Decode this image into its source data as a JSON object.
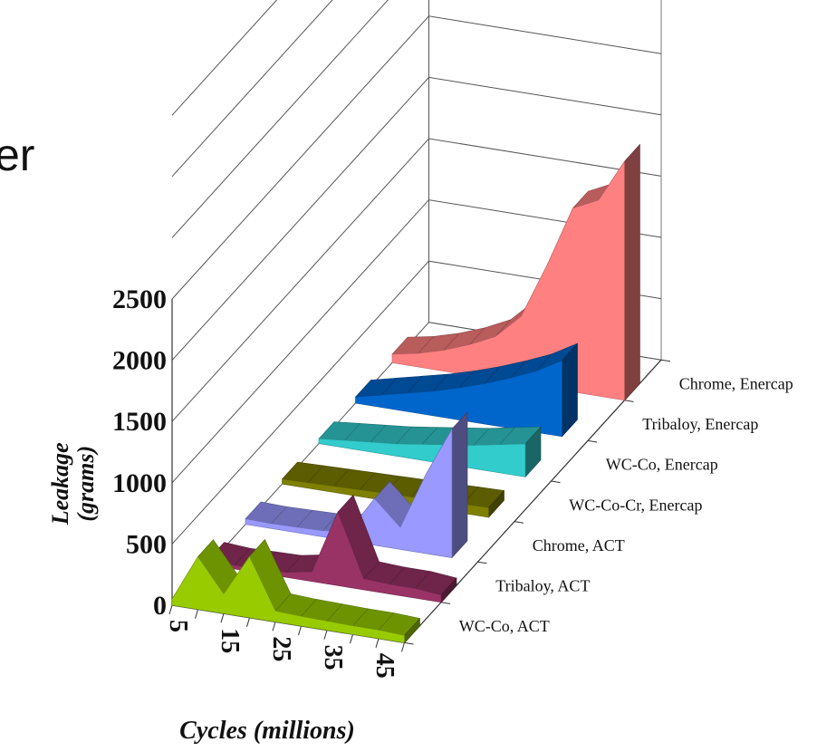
{
  "slide": {
    "title_fragment": "er"
  },
  "chart_data": {
    "type": "area",
    "title": "",
    "xlabel": "Cycles (millions)",
    "ylabel": "Leakage (grams)",
    "ylim": [
      0,
      2500
    ],
    "yticks": [
      "0",
      "500",
      "1000",
      "1500",
      "2000",
      "2500"
    ],
    "xticks": [
      "5",
      "15",
      "25",
      "35",
      "45"
    ],
    "x": [
      5,
      10,
      15,
      20,
      25,
      30,
      35,
      40,
      45,
      50
    ],
    "grid": true,
    "series": [
      {
        "name": "WC-Co, ACT",
        "color": "#99cc00",
        "values": [
          50,
          430,
          160,
          500,
          90,
          80,
          75,
          70,
          70,
          60
        ]
      },
      {
        "name": "Tribaloy, ACT",
        "color": "#993366",
        "values": [
          45,
          30,
          35,
          40,
          80,
          600,
          90,
          80,
          80,
          60
        ]
      },
      {
        "name": "Chrome, ACT",
        "color": "#9999ff",
        "values": [
          45,
          40,
          45,
          50,
          80,
          380,
          180,
          650,
          1050,
          0
        ]
      },
      {
        "name": "WC-Co-Cr, Enercap",
        "color": "#808000",
        "values": [
          40,
          45,
          50,
          55,
          60,
          65,
          70,
          75,
          80,
          0
        ]
      },
      {
        "name": "WC-Co, Enercap",
        "color": "#33cccc",
        "values": [
          40,
          60,
          80,
          100,
          130,
          160,
          190,
          230,
          270,
          0
        ]
      },
      {
        "name": "Tribaloy, Enercap",
        "color": "#0066cc",
        "values": [
          50,
          100,
          150,
          200,
          260,
          330,
          410,
          500,
          620,
          0
        ]
      },
      {
        "name": "Chrome, Enercap",
        "color": "#ff8080",
        "values": [
          70,
          110,
          170,
          250,
          350,
          550,
          1000,
          1500,
          1600,
          1950
        ]
      }
    ]
  }
}
